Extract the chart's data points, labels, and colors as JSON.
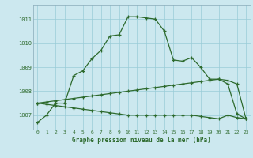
{
  "title": "Graphe pression niveau de la mer (hPa)",
  "bg_color": "#cce8ef",
  "grid_color": "#99ccd8",
  "line_color": "#2d6a2d",
  "ylim": [
    1006.4,
    1011.6
  ],
  "yticks": [
    1007,
    1008,
    1009,
    1010,
    1011
  ],
  "x_labels": [
    "0",
    "1",
    "2",
    "3",
    "4",
    "5",
    "6",
    "7",
    "8",
    "9",
    "10",
    "11",
    "12",
    "13",
    "14",
    "15",
    "16",
    "17",
    "18",
    "19",
    "20",
    "21",
    "22",
    "23"
  ],
  "series1": [
    1006.7,
    1007.0,
    1007.5,
    1007.5,
    1008.65,
    1008.85,
    1009.35,
    1009.7,
    1010.3,
    1010.35,
    1011.1,
    1011.1,
    1011.05,
    1011.0,
    1010.5,
    1009.3,
    1009.25,
    1009.4,
    1009.0,
    1008.5,
    1008.5,
    1008.3,
    1007.05,
    1006.85
  ],
  "series2": [
    1007.5,
    1007.55,
    1007.6,
    1007.65,
    1007.7,
    1007.75,
    1007.8,
    1007.85,
    1007.9,
    1007.95,
    1008.0,
    1008.05,
    1008.1,
    1008.15,
    1008.2,
    1008.25,
    1008.3,
    1008.35,
    1008.4,
    1008.45,
    1008.5,
    1008.45,
    1008.3,
    1006.85
  ],
  "series3": [
    1007.5,
    1007.45,
    1007.4,
    1007.35,
    1007.3,
    1007.25,
    1007.2,
    1007.15,
    1007.1,
    1007.05,
    1007.0,
    1007.0,
    1007.0,
    1007.0,
    1007.0,
    1007.0,
    1007.0,
    1007.0,
    1006.95,
    1006.9,
    1006.85,
    1007.0,
    1006.9,
    1006.85
  ]
}
